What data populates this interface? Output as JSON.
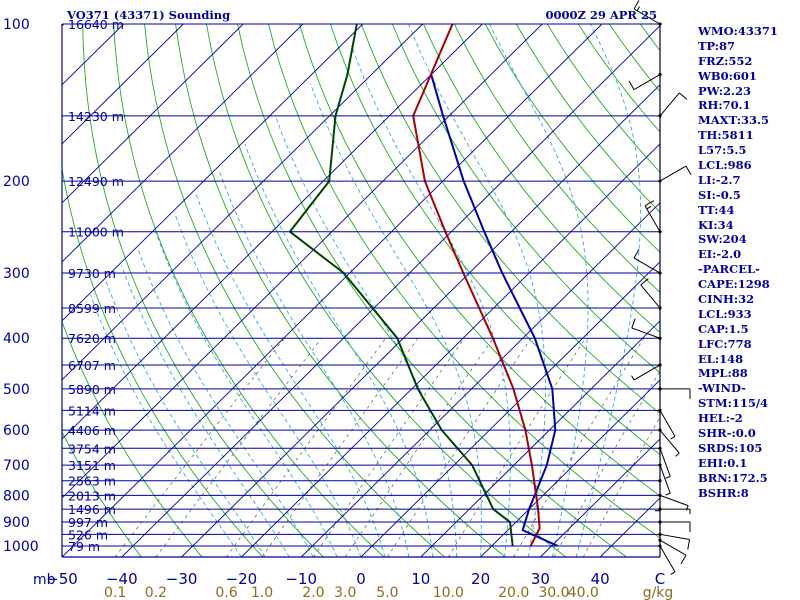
{
  "header": {
    "station": "VO371 (43371) Sounding",
    "time": "0000Z 29 APR 25"
  },
  "indices": [
    "WMO:43371",
    "TP:87",
    "FRZ:552",
    "WB0:601",
    "PW:2.23",
    "RH:70.1",
    "MAXT:33.5",
    "TH:5811",
    "L57:5.5",
    "LCL:986",
    "LI:-2.7",
    "SI:-0.5",
    "TT:44",
    "KI:34",
    "SW:204",
    "EI:-2.0",
    "-PARCEL-",
    "CAPE:1298",
    "CINH:32",
    "LCL:933",
    "CAP:1.5",
    "LFC:778",
    "EL:148",
    "MPL:88",
    "-WIND-",
    "STM:115/4",
    "HEL:-2",
    "SHR-:0.0",
    "SRDS:105",
    "EHI:0.1",
    "BRN:172.5",
    "BSHR:8"
  ],
  "colors": {
    "axes": "#0000a0",
    "isotherm": "#0000a0",
    "dry_adiabat": "#22aa22",
    "moist_adiabat": "#33aadd",
    "mixing_ratio": "#555555",
    "temperature": "#aa0000",
    "dewpoint": "#004400",
    "parcel": "#0000aa",
    "text": "#0000a0",
    "mixing_label": "#8c6d1f",
    "wind": "#000000"
  },
  "chart_data": {
    "type": "line",
    "subtype": "skew-T log-P sounding",
    "x_axis_unit": "mb",
    "mixing_ratio_unit": "g/kg",
    "pressure_ticks": [
      100,
      200,
      300,
      400,
      500,
      600,
      700,
      800,
      900,
      1000
    ],
    "temperature_ticks": [
      "−50",
      "−40",
      "−30",
      "−20",
      "−10",
      "0",
      "10",
      "20",
      "30",
      "40",
      "C"
    ],
    "temperature_tick_values": [
      -50,
      -40,
      -30,
      -20,
      -10,
      0,
      10,
      20,
      30,
      40,
      50
    ],
    "mixing_ratio_labels": [
      "0.1",
      "0.2",
      "0.6",
      "1.0",
      "2.0",
      "3.0",
      "5.0",
      "10.0",
      "20.0",
      "30.0",
      "40.0"
    ],
    "mixing_ratio_values": [
      0.1,
      0.2,
      0.6,
      1.0,
      2.0,
      3.0,
      5.0,
      10.0,
      20.0,
      30.0,
      40.0
    ],
    "mixing_ratio_unit_label": "g/kg",
    "height_labels": [
      {
        "p": 100,
        "h": "16640 m"
      },
      {
        "p": 150,
        "h": "14230 m"
      },
      {
        "p": 200,
        "h": "12490 m"
      },
      {
        "p": 250,
        "h": "11000 m"
      },
      {
        "p": 300,
        "h": "9730 m"
      },
      {
        "p": 350,
        "h": "8599 m"
      },
      {
        "p": 400,
        "h": "7620 m"
      },
      {
        "p": 450,
        "h": "6707 m"
      },
      {
        "p": 500,
        "h": "5890 m"
      },
      {
        "p": 550,
        "h": "5114 m"
      },
      {
        "p": 600,
        "h": "4406 m"
      },
      {
        "p": 650,
        "h": "3754 m"
      },
      {
        "p": 700,
        "h": "3151 m"
      },
      {
        "p": 750,
        "h": "2563 m"
      },
      {
        "p": 800,
        "h": "2013 m"
      },
      {
        "p": 850,
        "h": "1496 m"
      },
      {
        "p": 900,
        "h": "997 m"
      },
      {
        "p": 950,
        "h": "526 m"
      },
      {
        "p": 1000,
        "h": "79 m"
      }
    ],
    "temperature": [
      [
        1000,
        26.5
      ],
      [
        925,
        25
      ],
      [
        850,
        21.5
      ],
      [
        700,
        13
      ],
      [
        600,
        6
      ],
      [
        500,
        -3
      ],
      [
        400,
        -15
      ],
      [
        300,
        -31
      ],
      [
        250,
        -41
      ],
      [
        200,
        -53
      ],
      [
        150,
        -66
      ],
      [
        100,
        -75
      ]
    ],
    "dewpoint": [
      [
        1000,
        23.5
      ],
      [
        900,
        19
      ],
      [
        850,
        14
      ],
      [
        700,
        3
      ],
      [
        600,
        -8
      ],
      [
        500,
        -19
      ],
      [
        400,
        -31
      ],
      [
        300,
        -51
      ],
      [
        250,
        -67
      ],
      [
        200,
        -69
      ],
      [
        150,
        -79
      ],
      [
        125,
        -84
      ],
      [
        100,
        -91
      ]
    ],
    "parcel": [
      [
        1000,
        31
      ],
      [
        933,
        22.5
      ],
      [
        850,
        20
      ],
      [
        700,
        15.5
      ],
      [
        600,
        11
      ],
      [
        500,
        3.5
      ],
      [
        400,
        -8
      ],
      [
        300,
        -24.5
      ],
      [
        250,
        -34.5
      ],
      [
        200,
        -46.5
      ],
      [
        150,
        -61
      ],
      [
        125,
        -70
      ]
    ],
    "wind_barbs": [
      {
        "p": 1000,
        "dir": 150,
        "spd": 5
      },
      {
        "p": 975,
        "dir": 120,
        "spd": 10
      },
      {
        "p": 950,
        "dir": 100,
        "spd": 10
      },
      {
        "p": 900,
        "dir": 90,
        "spd": 10
      },
      {
        "p": 850,
        "dir": 90,
        "spd": 5
      },
      {
        "p": 800,
        "dir": 110,
        "spd": 5
      },
      {
        "p": 750,
        "dir": 180,
        "spd": 5
      },
      {
        "p": 700,
        "dir": 160,
        "spd": 5
      },
      {
        "p": 650,
        "dir": 160,
        "spd": 5
      },
      {
        "p": 600,
        "dir": 140,
        "spd": 5
      },
      {
        "p": 550,
        "dir": 150,
        "spd": 5
      },
      {
        "p": 500,
        "dir": 90,
        "spd": 10
      },
      {
        "p": 450,
        "dir": 240,
        "spd": 5
      },
      {
        "p": 400,
        "dir": 290,
        "spd": 10
      },
      {
        "p": 350,
        "dir": 320,
        "spd": 10
      },
      {
        "p": 300,
        "dir": 300,
        "spd": 10
      },
      {
        "p": 250,
        "dir": 330,
        "spd": 15
      },
      {
        "p": 200,
        "dir": 60,
        "spd": 10
      },
      {
        "p": 150,
        "dir": 40,
        "spd": 10
      },
      {
        "p": 125,
        "dir": 240,
        "spd": 10
      },
      {
        "p": 100,
        "dir": 300,
        "spd": 15
      }
    ],
    "grid": true
  }
}
